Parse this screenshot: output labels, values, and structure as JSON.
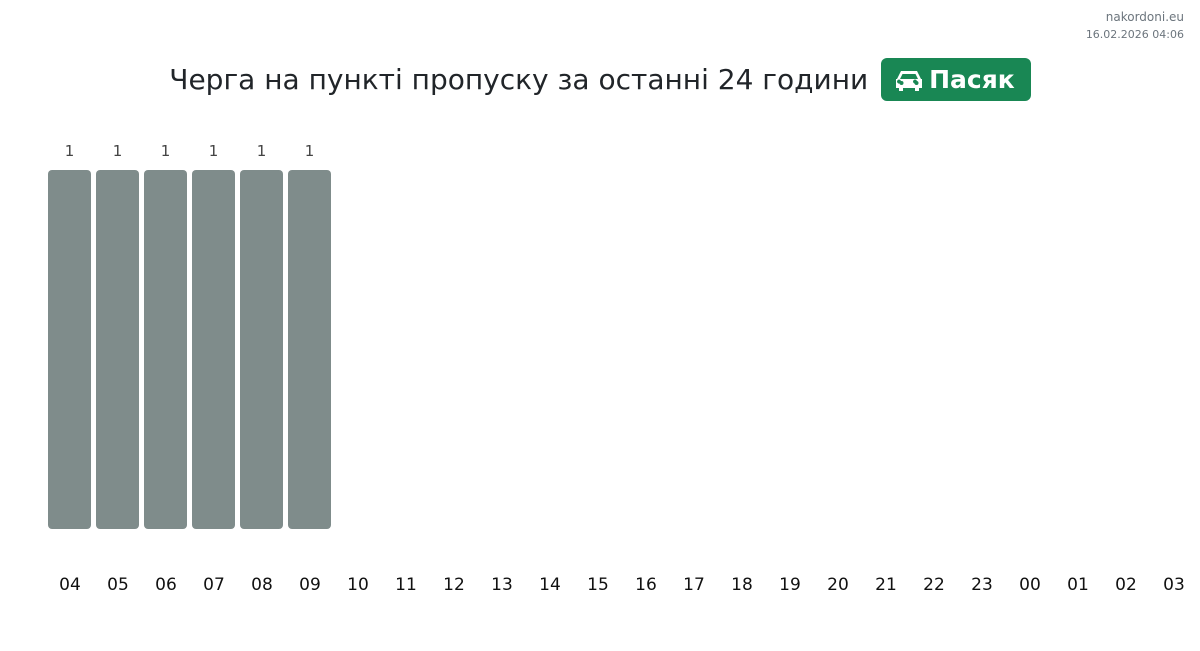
{
  "brand": {
    "site": "nakordoni.eu",
    "timestamp": "16.02.2026 04:06"
  },
  "header": {
    "title": "Черга на пункті пропуску за останні 24 години",
    "badge_label": "Пасяк",
    "badge_icon": "car-icon",
    "badge_color": "#198754"
  },
  "chart_data": {
    "type": "bar",
    "categories": [
      "04",
      "05",
      "06",
      "07",
      "08",
      "09",
      "10",
      "11",
      "12",
      "13",
      "14",
      "15",
      "16",
      "17",
      "18",
      "19",
      "20",
      "21",
      "22",
      "23",
      "00",
      "01",
      "02",
      "03"
    ],
    "values": [
      1,
      1,
      1,
      1,
      1,
      1,
      null,
      null,
      null,
      null,
      null,
      null,
      null,
      null,
      null,
      null,
      null,
      null,
      null,
      null,
      null,
      null,
      null,
      null
    ],
    "ylim": [
      0,
      1
    ],
    "bar_color": "#7f8c8b",
    "grid": false
  }
}
